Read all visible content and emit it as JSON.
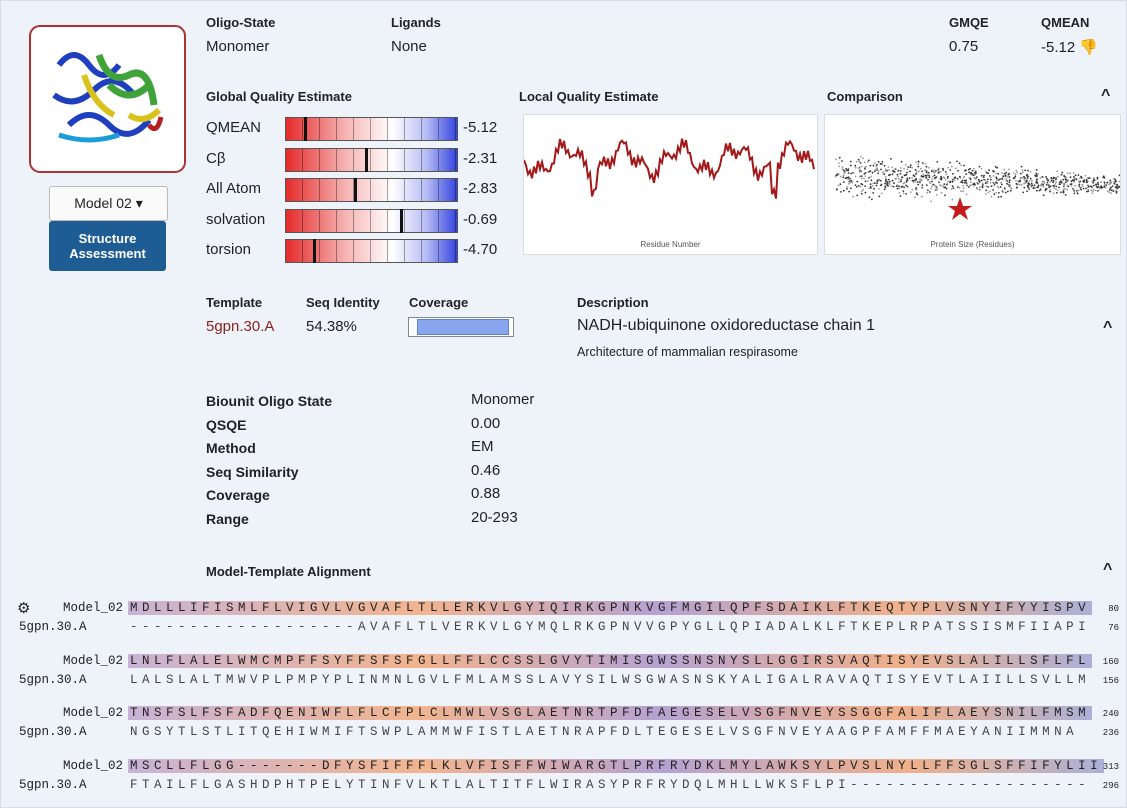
{
  "header": {
    "oligo_state": {
      "label": "Oligo-State",
      "value": "Monomer"
    },
    "ligands": {
      "label": "Ligands",
      "value": "None"
    },
    "gmqe": {
      "label": "GMQE",
      "value": "0.75"
    },
    "qmean": {
      "label": "QMEAN",
      "value": "-5.12"
    }
  },
  "model_button": "Model 02",
  "assessment_button": "Structure Assessment",
  "global_quality": {
    "title": "Global Quality Estimate",
    "rows": [
      {
        "label": "QMEAN",
        "value": "-5.12"
      },
      {
        "label": "Cβ",
        "value": "-2.31"
      },
      {
        "label": "All Atom",
        "value": "-2.83"
      },
      {
        "label": "solvation",
        "value": "-0.69"
      },
      {
        "label": "torsion",
        "value": "-4.70"
      }
    ]
  },
  "local_quality": {
    "title": "Local Quality Estimate",
    "xlabel": "Residue Number"
  },
  "comparison": {
    "title": "Comparison",
    "xlabel": "Protein Size (Residues)"
  },
  "template": {
    "template_label": "Template",
    "template": "5gpn.30.A",
    "identity_label": "Seq Identity",
    "identity": "54.38%",
    "coverage_label": "Coverage",
    "description_label": "Description",
    "description": "NADH-ubiquinone oxidoreductase chain 1",
    "subtitle": "Architecture of mammalian respirasome"
  },
  "biounit": [
    [
      "Biounit Oligo State",
      "Monomer"
    ],
    [
      "QSQE",
      "0.00"
    ],
    [
      "Method",
      "EM"
    ],
    [
      "Seq Similarity",
      "0.46"
    ],
    [
      "Coverage",
      "0.88"
    ],
    [
      "Range",
      "20-293"
    ]
  ],
  "alignment": {
    "title": "Model-Template Alignment",
    "blocks": [
      {
        "model_name": "Model_02",
        "model_seq": "MDLLLIFISMLFLVIGVLVGVAFLTLLERKVLGYIQIRKGPNKVGFMGILQPFSDAIKLFTKEQTYPLVSNYIFYYISPV",
        "model_end": 80,
        "template_name": "5gpn.30.A",
        "template_seq": "-------------------AVAFLTLVERKVLGYMQLRKGPNVVGPYGLLQPIADALKLFTKEPLRPATSSISMFIIAPI",
        "template_end": 76
      },
      {
        "model_name": "Model_02",
        "model_seq": "LNLFLALELWMCMPFFSYFFSFSFGLLFFLCCSSLGVYTIMISGWSSNSNYSLLGGIRSVAQTISYEVSLALILLSFLFL",
        "model_end": 160,
        "template_name": "5gpn.30.A",
        "template_seq": "LALSLALTMWVPLPMPYPLINMNLGVLFMLAMSSLAVYSILWSGWASNSKYALIGALRAVAQTISYEVTLAIILLSVLLM",
        "template_end": 156
      },
      {
        "model_name": "Model_02",
        "model_seq": "TNSFSLFSFADFQENIWFLFLCFPLCLMWLVSGLAETNRTPFDFAEGESELVSGFNVEYSSGGFALIFLAEYSNILFMSM",
        "model_end": 240,
        "template_name": "5gpn.30.A",
        "template_seq": "NGSYTLSTLITQEHIWMIFTSWPLAMMWFISTLAETNRAPFDLTEGESELVSGFNVEYAAGPFAMFFMAEYANIIMMNA",
        "template_end": 236
      },
      {
        "model_name": "Model_02",
        "model_seq": "MSCLLFLGG-------DFYSFIFFFLKLVFISFFWIWARGTLPRFRYDKLMYLAWKSYLPVSLNYLLFFSGLSFFIFYLII",
        "model_end": 313,
        "template_name": "5gpn.30.A",
        "template_seq": "FTAILFLGASHDPHTPELYTINFVLKTLALTITFLWIRASYPRFRYDQLMHLLWKSFLPI--------------------",
        "template_end": 296
      }
    ]
  }
}
